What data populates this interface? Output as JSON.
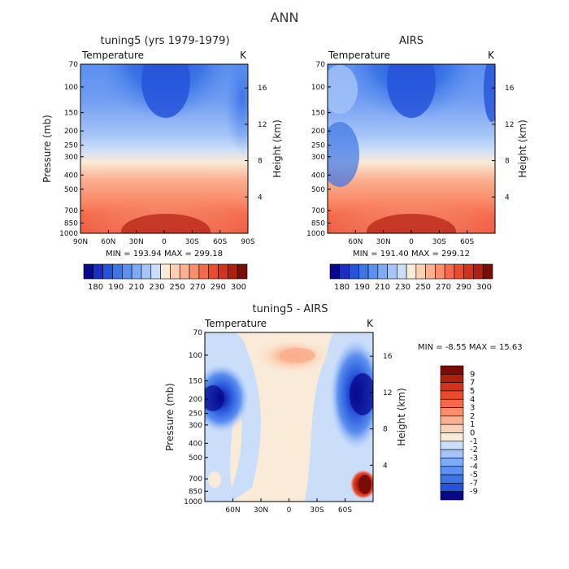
{
  "page": {
    "title": "ANN"
  },
  "chart_data": [
    {
      "type": "heatmap",
      "title": "tuning5 (yrs 1979-1979)",
      "subtitle": "Temperature",
      "units": "K",
      "ylabel": "Pressure (mb)",
      "y2label": "Height (km)",
      "x_ticks": [
        "90N",
        "60N",
        "30N",
        "0",
        "30S",
        "60S",
        "90S"
      ],
      "y_ticks": [
        "70",
        "100",
        "150",
        "200",
        "250",
        "300",
        "400",
        "500",
        "700",
        "850",
        "1000"
      ],
      "y2_ticks": [
        "16",
        "12",
        "8",
        "4"
      ],
      "ylim": [
        1000,
        70
      ],
      "xlim": [
        90,
        -90
      ],
      "stats": {
        "min_label": "MIN =",
        "min": "193.94",
        "max_label": "MAX =",
        "max": "299.18"
      },
      "colorbar": {
        "orientation": "horizontal",
        "labels": [
          "180",
          "190",
          "210",
          "230",
          "250",
          "270",
          "290",
          "300"
        ],
        "colors": [
          "#08088c",
          "#1a2fbf",
          "#2653d9",
          "#3c75e6",
          "#5b8ff0",
          "#7faaf5",
          "#a5c4f7",
          "#cadefa",
          "#faead8",
          "#fcd0b4",
          "#fbb090",
          "#f98d6c",
          "#f5684a",
          "#ec4a2c",
          "#d4321a",
          "#b0200f",
          "#7a0c06"
        ]
      }
    },
    {
      "type": "heatmap",
      "title": "AIRS",
      "subtitle": "Temperature",
      "units": "K",
      "ylabel": "",
      "y2label": "Height (km)",
      "x_ticks": [
        "60N",
        "30N",
        "0",
        "30S",
        "60S"
      ],
      "y_ticks": [
        "70",
        "100",
        "150",
        "200",
        "250",
        "300",
        "400",
        "500",
        "700",
        "850",
        "1000"
      ],
      "y2_ticks": [
        "16",
        "12",
        "8",
        "4"
      ],
      "ylim": [
        1000,
        70
      ],
      "xlim": [
        90,
        -90
      ],
      "stats": {
        "min_label": "MIN =",
        "min": "191.40",
        "max_label": "MAX =",
        "max": "299.12"
      },
      "colorbar": {
        "orientation": "horizontal",
        "labels": [
          "180",
          "190",
          "210",
          "230",
          "250",
          "270",
          "290",
          "300"
        ],
        "colors": [
          "#08088c",
          "#1a2fbf",
          "#2653d9",
          "#3c75e6",
          "#5b8ff0",
          "#7faaf5",
          "#a5c4f7",
          "#cadefa",
          "#faead8",
          "#fcd0b4",
          "#fbb090",
          "#f98d6c",
          "#f5684a",
          "#ec4a2c",
          "#d4321a",
          "#b0200f",
          "#7a0c06"
        ]
      }
    },
    {
      "type": "heatmap",
      "title": "tuning5 - AIRS",
      "subtitle": "Temperature",
      "units": "K",
      "ylabel": "Pressure (mb)",
      "y2label": "Height (km)",
      "x_ticks": [
        "60N",
        "30N",
        "0",
        "30S",
        "60S"
      ],
      "y_ticks": [
        "70",
        "100",
        "150",
        "200",
        "250",
        "300",
        "400",
        "500",
        "700",
        "850",
        "1000"
      ],
      "y2_ticks": [
        "16",
        "12",
        "8",
        "4"
      ],
      "ylim": [
        1000,
        70
      ],
      "xlim": [
        90,
        -90
      ],
      "stats": {
        "min_label": "MIN =",
        "min": "-8.55",
        "max_label": "MAX =",
        "max": "15.63"
      },
      "colorbar": {
        "orientation": "vertical",
        "labels": [
          "9",
          "7",
          "5",
          "4",
          "3",
          "2",
          "1",
          "0",
          "-1",
          "-2",
          "-3",
          "-4",
          "-5",
          "-7",
          "-9"
        ],
        "colors": [
          "#7a0c06",
          "#b0200f",
          "#d4321a",
          "#ec4a2c",
          "#f5684a",
          "#f98d6c",
          "#fbb090",
          "#fcd0b4",
          "#faead8",
          "#cadefa",
          "#a5c4f7",
          "#7faaf5",
          "#5b8ff0",
          "#3c75e6",
          "#2653d9",
          "#08088c"
        ]
      }
    }
  ]
}
